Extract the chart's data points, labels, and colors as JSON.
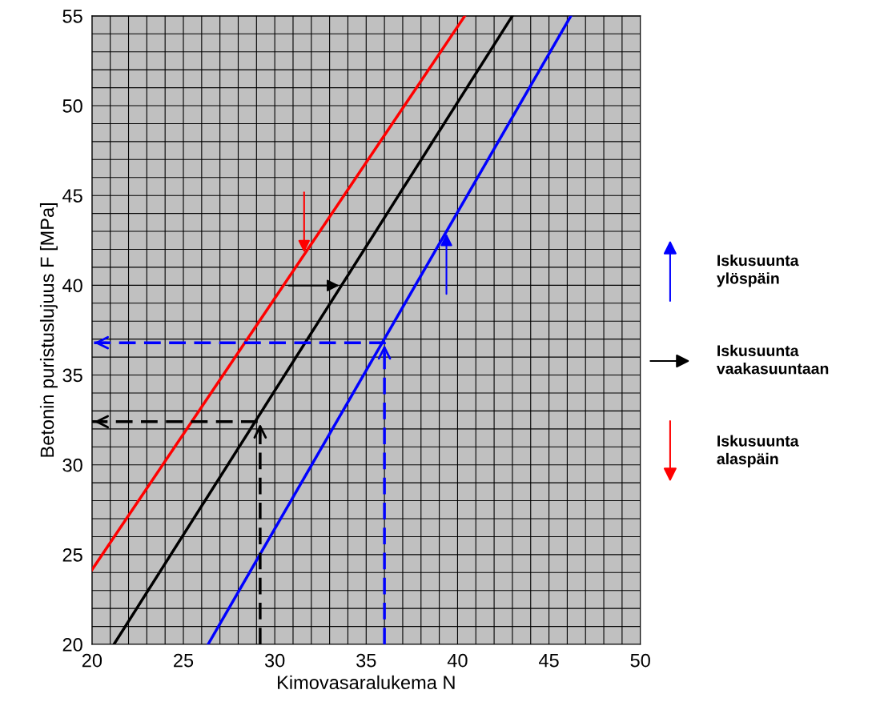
{
  "chart_data": {
    "type": "line",
    "xlabel": "Kimovasaralukema N",
    "ylabel": "Betonin puristuslujuus F [MPa]",
    "xlim": [
      20,
      50
    ],
    "ylim": [
      20,
      55
    ],
    "xticks": [
      20,
      {
        "value": 21,
        "label": null
      },
      {
        "value": 22,
        "label": null
      },
      {
        "value": 23,
        "label": null
      },
      {
        "value": 24,
        "label": null
      },
      25,
      {
        "value": 26,
        "label": null
      },
      {
        "value": 27,
        "label": null
      },
      {
        "value": 28,
        "label": null
      },
      {
        "value": 29,
        "label": null
      },
      30,
      {
        "value": 31,
        "label": null
      },
      {
        "value": 32,
        "label": null
      },
      {
        "value": 33,
        "label": null
      },
      {
        "value": 34,
        "label": null
      },
      35,
      {
        "value": 36,
        "label": null
      },
      {
        "value": 37,
        "label": null
      },
      {
        "value": 38,
        "label": null
      },
      {
        "value": 39,
        "label": null
      },
      40,
      {
        "value": 41,
        "label": null
      },
      {
        "value": 42,
        "label": null
      },
      {
        "value": 43,
        "label": null
      },
      {
        "value": 44,
        "label": null
      },
      45,
      {
        "value": 46,
        "label": null
      },
      {
        "value": 47,
        "label": null
      },
      {
        "value": 48,
        "label": null
      },
      {
        "value": 49,
        "label": null
      },
      50
    ],
    "yticks": [
      20,
      {
        "value": 21,
        "label": null
      },
      {
        "value": 22,
        "label": null
      },
      {
        "value": 23,
        "label": null
      },
      {
        "value": 24,
        "label": null
      },
      25,
      {
        "value": 26,
        "label": null
      },
      {
        "value": 27,
        "label": null
      },
      {
        "value": 28,
        "label": null
      },
      {
        "value": 29,
        "label": null
      },
      30,
      {
        "value": 31,
        "label": null
      },
      {
        "value": 32,
        "label": null
      },
      {
        "value": 33,
        "label": null
      },
      {
        "value": 34,
        "label": null
      },
      35,
      {
        "value": 36,
        "label": null
      },
      {
        "value": 37,
        "label": null
      },
      {
        "value": 38,
        "label": null
      },
      {
        "value": 39,
        "label": null
      },
      40,
      {
        "value": 41,
        "label": null
      },
      {
        "value": 42,
        "label": null
      },
      {
        "value": 43,
        "label": null
      },
      {
        "value": 44,
        "label": null
      },
      45,
      {
        "value": 46,
        "label": null
      },
      {
        "value": 47,
        "label": null
      },
      {
        "value": 48,
        "label": null
      },
      {
        "value": 49,
        "label": null
      },
      50,
      {
        "value": 51,
        "label": null
      },
      {
        "value": 52,
        "label": null
      },
      {
        "value": 53,
        "label": null
      },
      {
        "value": 54,
        "label": null
      },
      55
    ],
    "grid": true,
    "legend": "right",
    "line_style": "solid",
    "marker": "none",
    "series": [
      {
        "name": "Iskusuunta ylöspäin",
        "color": "#0000ff",
        "x": [
          26.35,
          46.2
        ],
        "values": [
          20,
          55
        ]
      },
      {
        "name": "Iskusuunta vaakasuuntaan",
        "color": "#000000",
        "x": [
          21.2,
          43.0
        ],
        "values": [
          20,
          55
        ]
      },
      {
        "name": "Iskusuunta alaspäin",
        "color": "#ff0000",
        "x": [
          20,
          40.4
        ],
        "values": [
          24.15,
          55
        ]
      },
      {
        "color": "#0000ff",
        "line_style": "dashed",
        "x": [
          36,
          36,
          20
        ],
        "values": [
          20,
          36.8,
          36.8
        ]
      },
      {
        "color": "#000000",
        "line_style": "dashed",
        "x": [
          29.2,
          29.2,
          20
        ],
        "values": [
          20,
          32.4,
          32.4
        ]
      }
    ]
  }
}
